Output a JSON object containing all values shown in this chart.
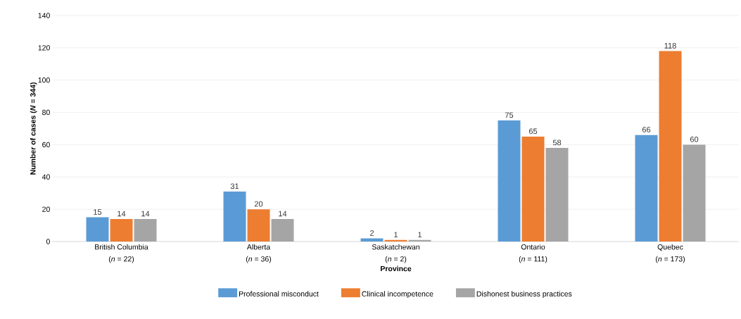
{
  "chart_data": {
    "type": "bar",
    "xlabel": "Province",
    "ylabel": "Number of cases   (*N* = 344)",
    "categories": [
      "British Columbia",
      "Alberta",
      "Saskatchewan",
      "Ontario",
      "Quebec"
    ],
    "series": [
      {
        "name": "Professional misconduct",
        "color": "#5b9bd5",
        "values": [
          15,
          31,
          2,
          75,
          66
        ]
      },
      {
        "name": "Clinical incompetence",
        "color": "#ed7d31",
        "values": [
          14,
          20,
          1,
          65,
          118
        ]
      },
      {
        "name": "Dishonest business practices",
        "color": "#a5a5a5",
        "values": [
          14,
          14,
          1,
          58,
          60
        ]
      }
    ],
    "annotations": [
      "(*n* = 22)",
      "(*n* = 36)",
      "(*n* = 2)",
      "(*n* = 111)",
      "(*n* = 173)"
    ],
    "ylim": [
      0,
      140
    ],
    "yticks": [
      0,
      20,
      40,
      60,
      80,
      100,
      120,
      140
    ],
    "grid": "y",
    "legend": "bottom",
    "data_labels": true
  }
}
